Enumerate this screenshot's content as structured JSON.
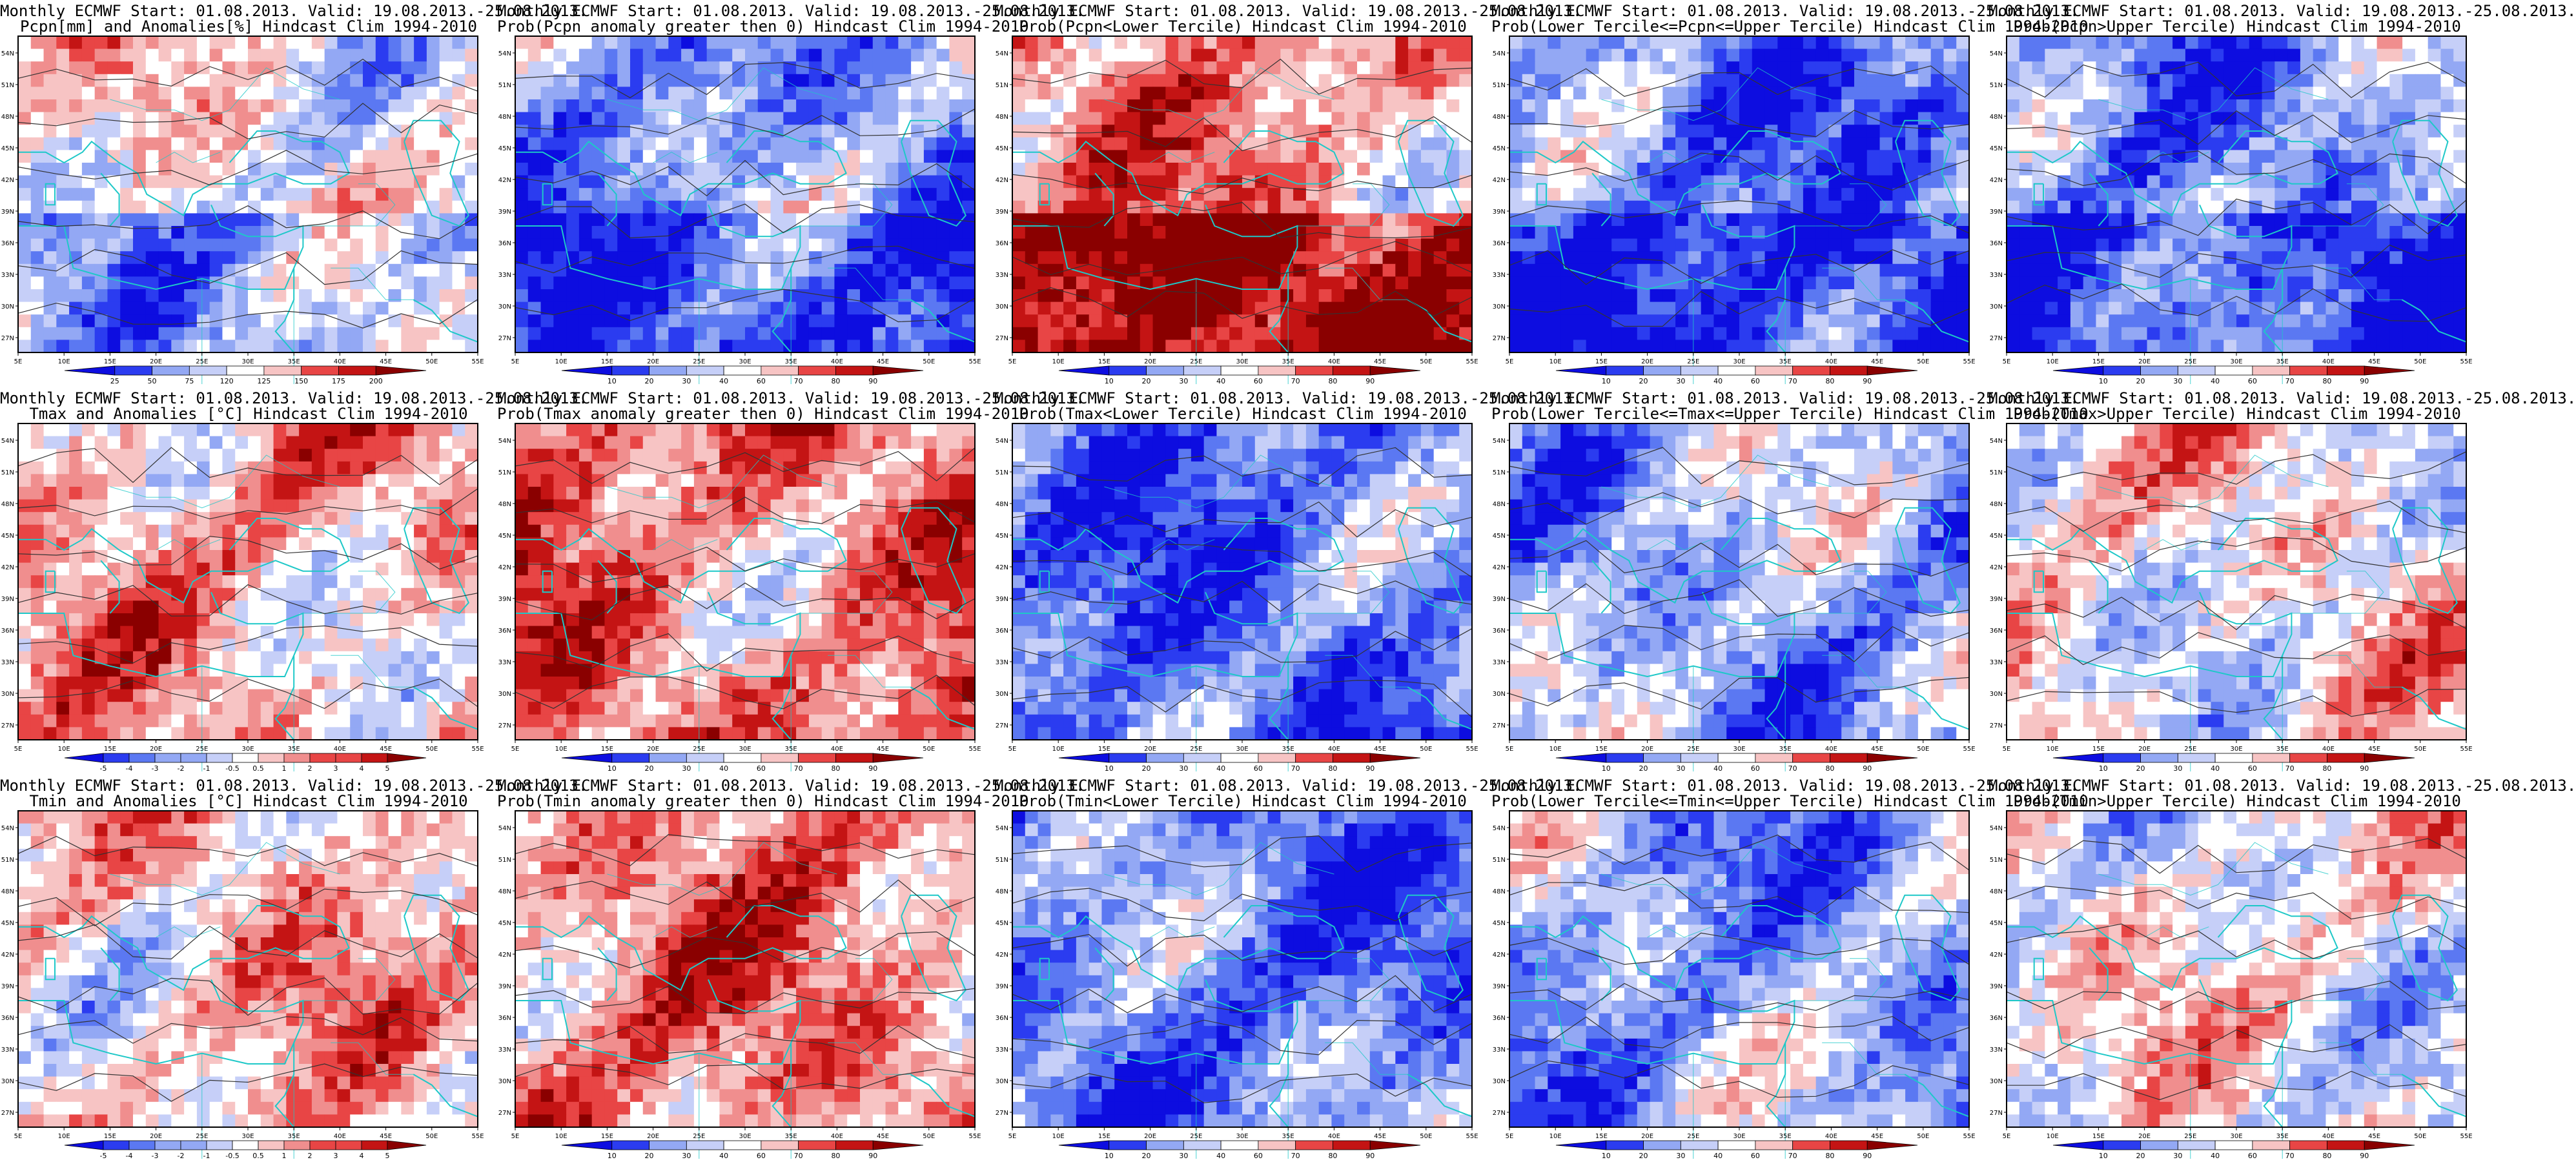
{
  "colors": {
    "blue_scale": [
      "#0d0de0",
      "#2b3cf0",
      "#5b78f2",
      "#93a8f4",
      "#c6cff8",
      "#ffffff",
      "#f7c4c4",
      "#f08e8e",
      "#e84545",
      "#c41414",
      "#8a0000"
    ],
    "coast": "#1ec8c8",
    "contour": "#333333"
  },
  "axes": {
    "lon_ticks": [
      "5E",
      "10E",
      "15E",
      "20E",
      "25E",
      "30E",
      "35E",
      "40E",
      "45E",
      "50E",
      "55E"
    ],
    "lat_ticks": [
      "54N",
      "51N",
      "48N",
      "45N",
      "42N",
      "39N",
      "36N",
      "33N",
      "30N",
      "27N"
    ]
  },
  "colorbars": {
    "pcpn_anom": [
      "25",
      "50",
      "75",
      "120",
      "125",
      "150",
      "175",
      "200"
    ],
    "prob": [
      "10",
      "20",
      "30",
      "40",
      "60",
      "70",
      "80",
      "90"
    ],
    "temp_anom": [
      "-5",
      "-4",
      "-3",
      "-2",
      "-1",
      "-0.5",
      "0.5",
      "1",
      "2",
      "3",
      "4",
      "5"
    ]
  },
  "panels": [
    {
      "line1": "Monthly ECMWF Start: 01.08.2013. Valid: 19.08.2013.-25.08.2013.",
      "line2": "Pcpn[mm] and Anomalies[%] Hindcast Clim 1994-2010",
      "field": "pcpn_anom",
      "colorbar": "pcpn_anom",
      "bias": 0.0
    },
    {
      "line1": "Monthly ECMWF Start: 01.08.2013. Valid: 19.08.2013.-25.08.2013.",
      "line2": "Prob(Pcpn anomaly greater then 0) Hindcast Clim 1994-2010",
      "field": "prob",
      "colorbar": "prob",
      "bias": -0.45
    },
    {
      "line1": "Monthly ECMWF Start: 01.08.2013. Valid: 19.08.2013.-25.08.2013.",
      "line2": "Prob(Pcpn<Lower Tercile) Hindcast Clim 1994-2010",
      "field": "prob",
      "colorbar": "prob",
      "bias": 0.35
    },
    {
      "line1": "Monthly ECMWF Start: 01.08.2013. Valid: 19.08.2013.-25.08.2013.",
      "line2": "Prob(Lower Tercile<=Pcpn<=Upper Tercile) Hindcast Clim 1994-2010",
      "field": "prob",
      "colorbar": "prob",
      "bias": -0.55
    },
    {
      "line1": "Monthly ECMWF Start: 01.08.2013. Valid: 19.08.2013.-25.08.2013.",
      "line2": "Prob(Pcpn>Upper Tercile) Hindcast Clim 1994-2010",
      "field": "prob",
      "colorbar": "prob",
      "bias": -0.45
    },
    {
      "line1": "Monthly ECMWF Start: 01.08.2013. Valid: 19.08.2013.-25.08.2013.",
      "line2": "Tmax and Anomalies [°C] Hindcast Clim 1994-2010",
      "field": "temp_anom",
      "colorbar": "temp_anom",
      "bias": 0.25
    },
    {
      "line1": "Monthly ECMWF Start: 01.08.2013. Valid: 19.08.2013.-25.08.2013.",
      "line2": "Prob(Tmax anomaly greater then 0) Hindcast Clim 1994-2010",
      "field": "prob",
      "colorbar": "prob",
      "bias": 0.45
    },
    {
      "line1": "Monthly ECMWF Start: 01.08.2013. Valid: 19.08.2013.-25.08.2013.",
      "line2": "Prob(Tmax<Lower Tercile) Hindcast Clim 1994-2010",
      "field": "prob",
      "colorbar": "prob",
      "bias": -0.6
    },
    {
      "line1": "Monthly ECMWF Start: 01.08.2013. Valid: 19.08.2013.-25.08.2013.",
      "line2": "Prob(Lower Tercile<=Tmax<=Upper Tercile) Hindcast Clim 1994-2010",
      "field": "prob",
      "colorbar": "prob",
      "bias": -0.35
    },
    {
      "line1": "Monthly ECMWF Start: 01.08.2013. Valid: 19.08.2013.-25.08.2013.",
      "line2": "Prob(Tmax>Upper Tercile) Hindcast Clim 1994-2010",
      "field": "prob",
      "colorbar": "prob",
      "bias": 0.05
    },
    {
      "line1": "Monthly ECMWF Start: 01.08.2013. Valid: 19.08.2013.-25.08.2013.",
      "line2": "Tmin and Anomalies [°C] Hindcast Clim 1994-2010",
      "field": "temp_anom",
      "colorbar": "temp_anom",
      "bias": 0.2
    },
    {
      "line1": "Monthly ECMWF Start: 01.08.2013. Valid: 19.08.2013.-25.08.2013.",
      "line2": "Prob(Tmin anomaly greater then 0) Hindcast Clim 1994-2010",
      "field": "prob",
      "colorbar": "prob",
      "bias": 0.4
    },
    {
      "line1": "Monthly ECMWF Start: 01.08.2013. Valid: 19.08.2013.-25.08.2013.",
      "line2": "Prob(Tmin<Lower Tercile) Hindcast Clim 1994-2010",
      "field": "prob",
      "colorbar": "prob",
      "bias": -0.55
    },
    {
      "line1": "Monthly ECMWF Start: 01.08.2013. Valid: 19.08.2013.-25.08.2013.",
      "line2": "Prob(Lower Tercile<=Tmin<=Upper Tercile) Hindcast Clim 1994-2010",
      "field": "prob",
      "colorbar": "prob",
      "bias": -0.4
    },
    {
      "line1": "Monthly ECMWF Start: 01.08.2013. Valid: 19.08.2013.-25.08.2013.",
      "line2": "Prob(Tmin>Upper Tercile) Hindcast Clim 1994-2010",
      "field": "prob",
      "colorbar": "prob",
      "bias": 0.0
    }
  ]
}
